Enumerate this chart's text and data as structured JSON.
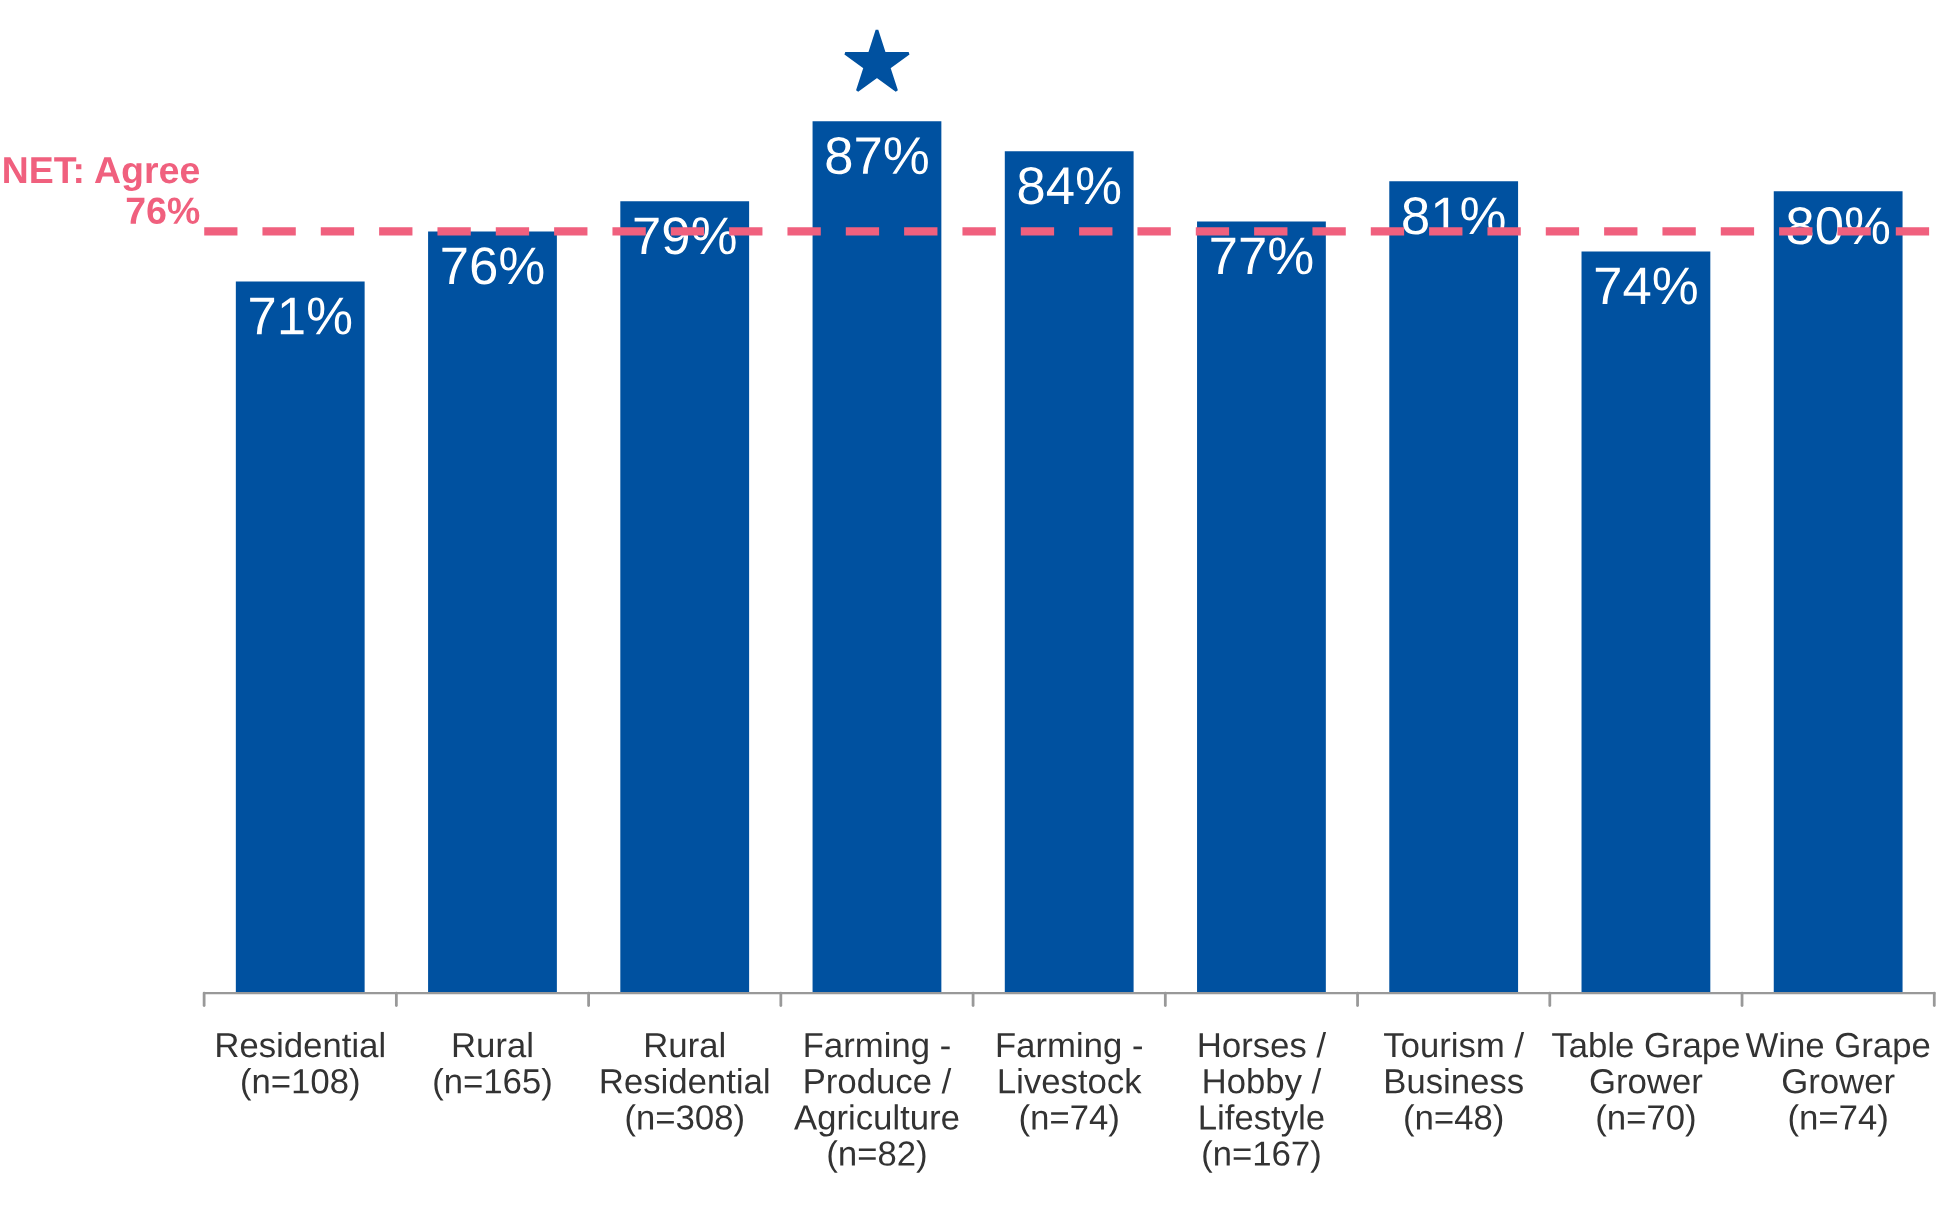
{
  "chart_data": {
    "type": "bar",
    "categories": [
      "Residential\n(n=108)",
      "Rural\n(n=165)",
      "Rural\nResidential\n(n=308)",
      "Farming -\nProduce /\nAgriculture\n(n=82)",
      "Farming -\nLivestock\n(n=74)",
      "Horses /\nHobby /\nLifestyle\n(n=167)",
      "Tourism /\nBusiness\n(n=48)",
      "Table Grape\nGrower\n(n=70)",
      "Wine Grape\nGrower\n(n=74)"
    ],
    "values": [
      71,
      76,
      79,
      87,
      84,
      77,
      81,
      74,
      80
    ],
    "value_labels": [
      "71%",
      "76%",
      "79%",
      "87%",
      "84%",
      "77%",
      "81%",
      "74%",
      "80%"
    ],
    "color": "#0051a0",
    "tick_labels": "x",
    "grid": false,
    "legend": false,
    "ref_lines": [
      {
        "axis": "y",
        "value": 76,
        "label": "NET: Agree\n76%",
        "color": "#f0607e",
        "line_style": "dashed"
      }
    ]
  }
}
